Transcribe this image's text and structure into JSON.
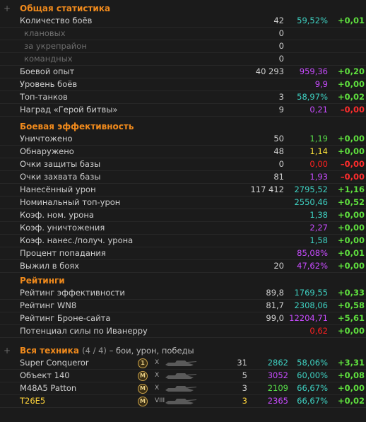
{
  "general": {
    "title": "Общая статистика",
    "rows": [
      {
        "label": "Количество боёв",
        "c1": "42",
        "c2": "59,52%",
        "c2c": "teal",
        "c3": "+0,01",
        "c3c": "pos"
      },
      {
        "label": "клановых",
        "c1": "0",
        "indent": true
      },
      {
        "label": "за укрепрайон",
        "c1": "0",
        "indent": true
      },
      {
        "label": "командных",
        "c1": "0",
        "indent": true
      },
      {
        "label": "Боевой опыт",
        "c1": "40 293",
        "c2": "959,36",
        "c2c": "purple",
        "c3": "+0,20",
        "c3c": "pos"
      },
      {
        "label": "Уровень боёв",
        "c1": "",
        "c2": "9,9",
        "c2c": "purple",
        "c3": "+0,00",
        "c3c": "zero"
      },
      {
        "label": "Топ-танков",
        "c1": "3",
        "c2": "58,97%",
        "c2c": "teal",
        "c3": "+0,02",
        "c3c": "pos"
      },
      {
        "label": "Наград «Герой битвы»",
        "c1": "9",
        "c2": "0,21",
        "c2c": "purple",
        "c3": "–0,00",
        "c3c": "neg"
      }
    ]
  },
  "efficiency": {
    "title": "Боевая эффективность",
    "rows": [
      {
        "label": "Уничтожено",
        "c1": "50",
        "c2": "1,19",
        "c2c": "green",
        "c3": "+0,00",
        "c3c": "zero"
      },
      {
        "label": "Обнаружено",
        "c1": "48",
        "c2": "1,14",
        "c2c": "yellow",
        "c3": "+0,00",
        "c3c": "zero"
      },
      {
        "label": "Очки защиты базы",
        "c1": "0",
        "c2": "0,00",
        "c2c": "red",
        "c3": "–0,00",
        "c3c": "neg"
      },
      {
        "label": "Очки захвата базы",
        "c1": "81",
        "c2": "1,93",
        "c2c": "purple",
        "c3": "–0,00",
        "c3c": "neg"
      },
      {
        "label": "Нанесённый урон",
        "c1": "117 412",
        "c2": "2795,52",
        "c2c": "teal",
        "c3": "+1,16",
        "c3c": "pos"
      },
      {
        "label": "Номинальный топ-урон",
        "c1": "",
        "c2": "2550,46",
        "c2c": "teal",
        "c3": "+0,52",
        "c3c": "pos"
      },
      {
        "label": "Коэф. ном. урона",
        "c1": "",
        "c2": "1,38",
        "c2c": "teal",
        "c3": "+0,00",
        "c3c": "zero"
      },
      {
        "label": "Коэф. уничтожения",
        "c1": "",
        "c2": "2,27",
        "c2c": "purple",
        "c3": "+0,00",
        "c3c": "zero"
      },
      {
        "label": "Коэф. нанес./получ. урона",
        "c1": "",
        "c2": "1,58",
        "c2c": "teal",
        "c3": "+0,00",
        "c3c": "zero"
      },
      {
        "label": "Процент попадания",
        "c1": "",
        "c2": "85,08%",
        "c2c": "purple",
        "c3": "+0,01",
        "c3c": "pos"
      },
      {
        "label": "Выжил в боях",
        "c1": "20",
        "c2": "47,62%",
        "c2c": "purple",
        "c3": "+0,00",
        "c3c": "zero"
      }
    ]
  },
  "ratings": {
    "title": "Рейтинги",
    "rows": [
      {
        "label": "Рейтинг эффективности",
        "c1": "89,8",
        "c2": "1769,55",
        "c2c": "teal",
        "c3": "+0,33",
        "c3c": "pos"
      },
      {
        "label": "Рейтинг WN8",
        "c1": "81,7",
        "c2": "2308,06",
        "c2c": "teal",
        "c3": "+0,58",
        "c3c": "pos"
      },
      {
        "label": "Рейтинг Броне-сайта",
        "c1": "99,0",
        "c2": "12204,71",
        "c2c": "purple",
        "c3": "+5,61",
        "c3c": "pos"
      },
      {
        "label": "Потенциал силы по Иванерру",
        "c1": "",
        "c2": "0,62",
        "c2c": "red",
        "c3": "+0,00",
        "c3c": "zero"
      }
    ]
  },
  "vehicles": {
    "title": "Вся техника",
    "count": "(4 / 4)",
    "subtitle": "– бои, урон, победы",
    "rows": [
      {
        "name": "Super Conqueror",
        "badge": "1",
        "tier": "X",
        "battles": "31",
        "dmg": "2862",
        "dmgc": "teal",
        "wr": "58,06%",
        "wrc": "teal",
        "delta": "+3,31",
        "hl": false
      },
      {
        "name": "Объект 140",
        "badge": "M",
        "tier": "X",
        "battles": "5",
        "dmg": "3052",
        "dmgc": "purple",
        "wr": "60,00%",
        "wrc": "teal",
        "delta": "+0,08",
        "hl": false
      },
      {
        "name": "M48A5 Patton",
        "badge": "M",
        "tier": "X",
        "battles": "3",
        "dmg": "2109",
        "dmgc": "green",
        "wr": "66,67%",
        "wrc": "teal",
        "delta": "+0,00",
        "hl": false
      },
      {
        "name": "T26E5",
        "badge": "M",
        "tier": "VIII",
        "battles": "3",
        "dmg": "2365",
        "dmgc": "purple",
        "wr": "66,67%",
        "wrc": "teal",
        "delta": "+0,02",
        "hl": true
      }
    ]
  },
  "colors": {
    "accent": "#f08a1c",
    "teal": "#3ed1c2",
    "purple": "#c84bff",
    "green": "#58e04a",
    "red": "#ff2020",
    "yellow": "#ffe43a"
  }
}
